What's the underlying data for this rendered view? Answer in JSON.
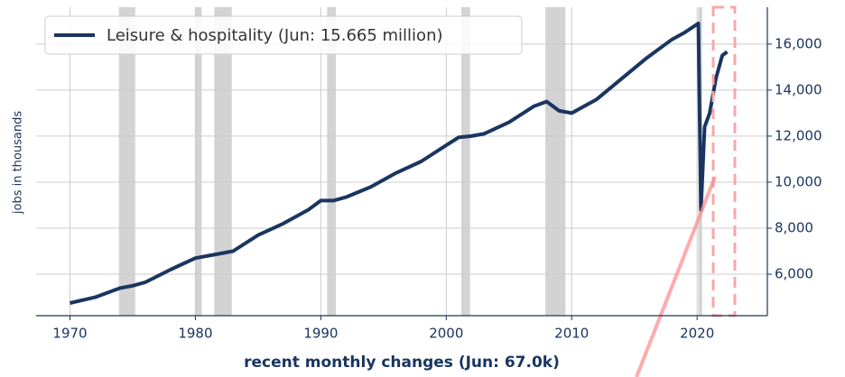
{
  "chart_data": {
    "type": "line",
    "xlabel": "recent monthly changes (Jun: 67.0k)",
    "ylabel": "jobs in thousands",
    "series": [
      {
        "name": "Leisure & hospitality (Jun: 15.665 million)",
        "color": "#1a3560",
        "x": [
          1970,
          1972,
          1974,
          1975,
          1976,
          1978,
          1980,
          1981,
          1982,
          1983,
          1985,
          1987,
          1989,
          1990,
          1991,
          1992,
          1994,
          1996,
          1998,
          2000,
          2001,
          2002,
          2003,
          2005,
          2007,
          2008,
          2009,
          2010,
          2012,
          2014,
          2016,
          2018,
          2019,
          2020.1,
          2020.3,
          2020.6,
          2021,
          2021.5,
          2022,
          2022.4
        ],
        "values": [
          4750,
          5000,
          5400,
          5500,
          5650,
          6200,
          6700,
          6800,
          6900,
          7000,
          7700,
          8200,
          8800,
          9200,
          9200,
          9350,
          9800,
          10400,
          10900,
          11600,
          11950,
          12000,
          12100,
          12600,
          13300,
          13500,
          13100,
          13000,
          13600,
          14500,
          15400,
          16200,
          16500,
          16900,
          8800,
          12400,
          13000,
          14500,
          15500,
          15665
        ]
      }
    ],
    "recessions": [
      [
        1973.9,
        1975.2
      ],
      [
        1980.0,
        1980.5
      ],
      [
        1981.5,
        1982.9
      ],
      [
        1990.5,
        1991.2
      ],
      [
        2001.2,
        2001.9
      ],
      [
        2007.9,
        2009.5
      ],
      [
        2020.1,
        2020.4
      ]
    ],
    "xlim": [
      1967.3,
      2025.6
    ],
    "xticks": [
      1970,
      1980,
      1990,
      2000,
      2010,
      2020
    ],
    "ylim": [
      4200,
      17600
    ],
    "yticks": [
      {
        "value": 6000,
        "label": "6,000"
      },
      {
        "value": 8000,
        "label": "8,000"
      },
      {
        "value": 10000,
        "label": "10,000"
      },
      {
        "value": 12000,
        "label": "12,000"
      },
      {
        "value": 14000,
        "label": "14,000"
      },
      {
        "value": 16000,
        "label": "16,000"
      }
    ],
    "grid": true,
    "legend": "upper left"
  }
}
